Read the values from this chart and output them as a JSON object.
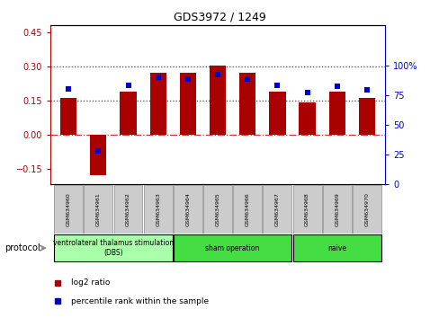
{
  "title": "GDS3972 / 1249",
  "samples": [
    "GSM634960",
    "GSM634961",
    "GSM634962",
    "GSM634963",
    "GSM634964",
    "GSM634965",
    "GSM634966",
    "GSM634967",
    "GSM634968",
    "GSM634969",
    "GSM634970"
  ],
  "log2_ratio": [
    0.16,
    -0.18,
    0.19,
    0.27,
    0.27,
    0.305,
    0.27,
    0.19,
    0.14,
    0.19,
    0.16
  ],
  "percentile_rank": [
    80,
    28,
    83,
    90,
    88,
    92,
    88,
    83,
    77,
    82,
    79
  ],
  "bar_color": "#aa0000",
  "dot_color": "#0000cc",
  "ylim_left": [
    -0.22,
    0.48
  ],
  "ylim_right": [
    0,
    133.33
  ],
  "yticks_left": [
    -0.15,
    0.0,
    0.15,
    0.3,
    0.45
  ],
  "yticks_right": [
    0,
    25,
    50,
    75,
    100
  ],
  "ytick_labels_right": [
    "0",
    "25",
    "50",
    "75",
    "100%"
  ],
  "hlines": [
    0.0,
    0.15,
    0.3
  ],
  "hline_styles": [
    "dashdot",
    "dotted",
    "dotted"
  ],
  "hline_colors": [
    "#cc3333",
    "#444444",
    "#444444"
  ],
  "protocol_groups": [
    {
      "label": "ventrolateral thalamus stimulation\n(DBS)",
      "start": 0,
      "end": 3,
      "color": "#aaffaa"
    },
    {
      "label": "sham operation",
      "start": 4,
      "end": 7,
      "color": "#44dd44"
    },
    {
      "label": "naive",
      "start": 8,
      "end": 10,
      "color": "#44dd44"
    }
  ],
  "legend_items": [
    {
      "label": "log2 ratio",
      "color": "#aa0000"
    },
    {
      "label": "percentile rank within the sample",
      "color": "#0000cc"
    }
  ],
  "bar_width": 0.55
}
